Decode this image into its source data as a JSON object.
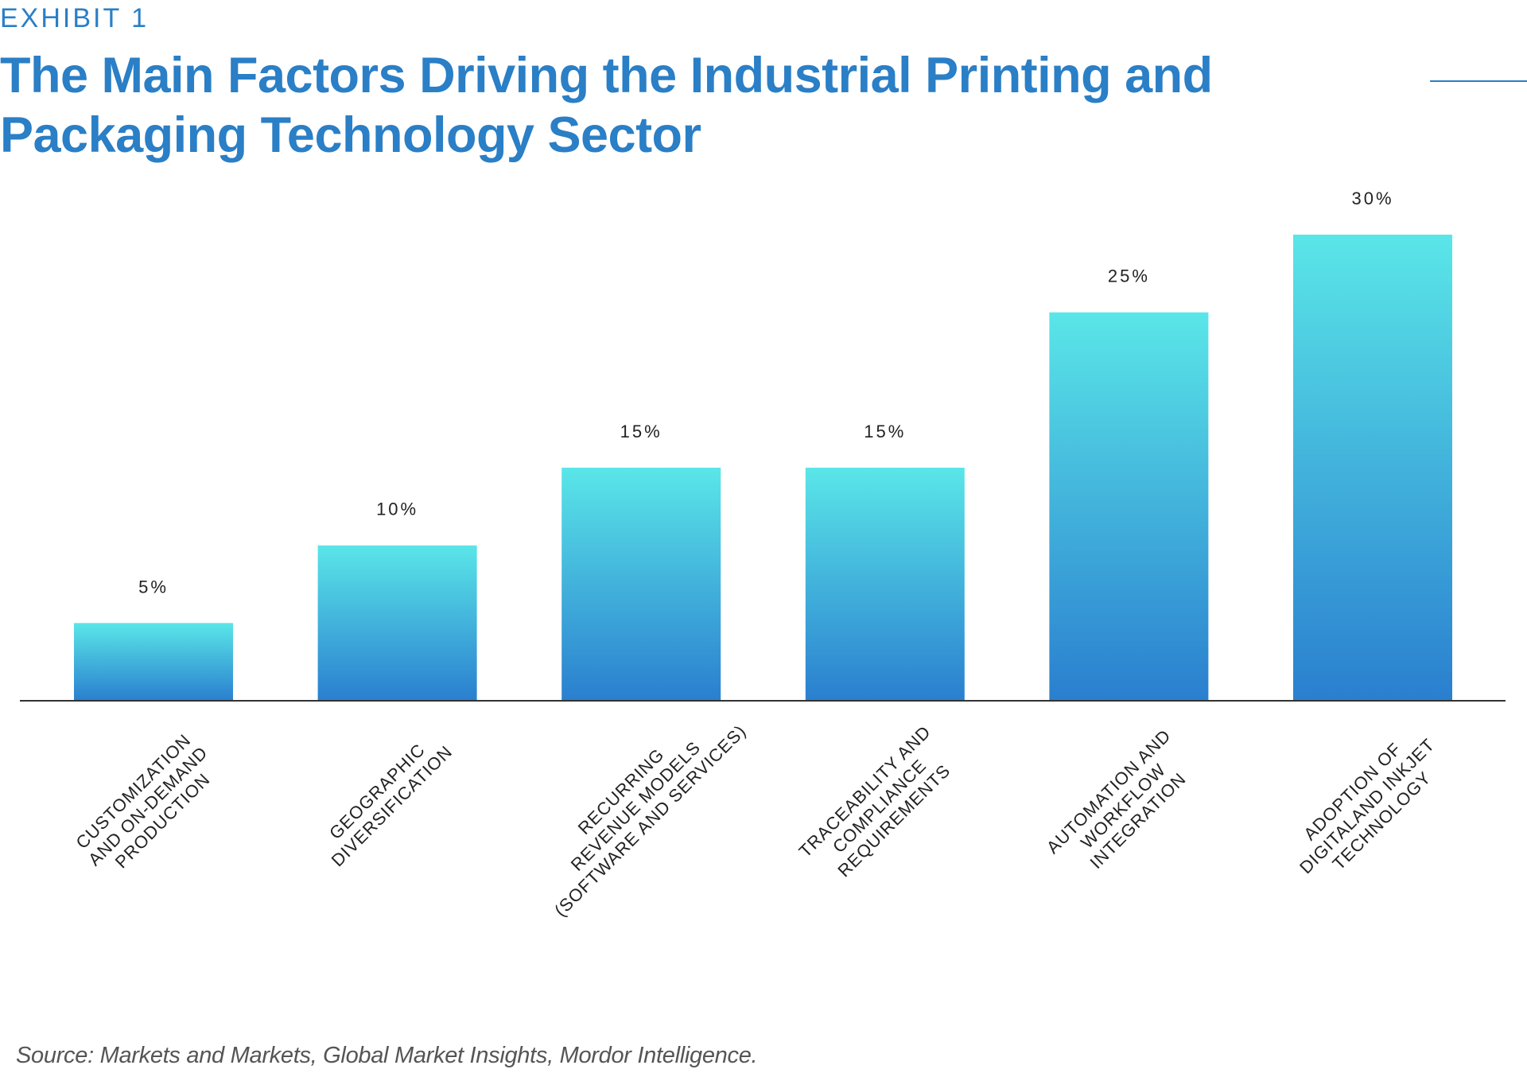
{
  "header": {
    "exhibit_label": "EXHIBIT 1",
    "title": "The Main Factors Driving the Industrial Printing and Packaging Technology Sector"
  },
  "source_note": "Source: Markets and Markets, Global Market Insights, Mordor Intelligence.",
  "colors": {
    "accent": "#2a7fc6",
    "bar_top": "#5ae6e8",
    "bar_bottom": "#2a7fcf",
    "axis": "#333333",
    "label_text": "#222222"
  },
  "chart_data": {
    "type": "bar",
    "title": "The Main Factors Driving the Industrial Printing and Packaging Technology Sector",
    "xlabel": "",
    "ylabel": "",
    "ylim": [
      0,
      30
    ],
    "grid": false,
    "legend": "none",
    "categories": [
      [
        "CUSTOMIZATION",
        "AND ON-DEMAND",
        "PRODUCTION"
      ],
      [
        "GEOGRAPHIC",
        "DIVERSIFICATION"
      ],
      [
        "RECURRING",
        "REVENUE MODELS",
        "(SOFTWARE AND SERVICES)"
      ],
      [
        "TRACEABILITY AND",
        "COMPLIANCE",
        "REQUIREMENTS"
      ],
      [
        "AUTOMATION AND",
        "WORKFLOW",
        "INTEGRATION"
      ],
      [
        "ADOPTION OF",
        "DIGITALAND INKJET",
        "TECHNOLOGY"
      ]
    ],
    "values": [
      5,
      10,
      15,
      15,
      25,
      30
    ],
    "value_labels": [
      "5%",
      "10%",
      "15%",
      "15%",
      "25%",
      "30%"
    ]
  }
}
